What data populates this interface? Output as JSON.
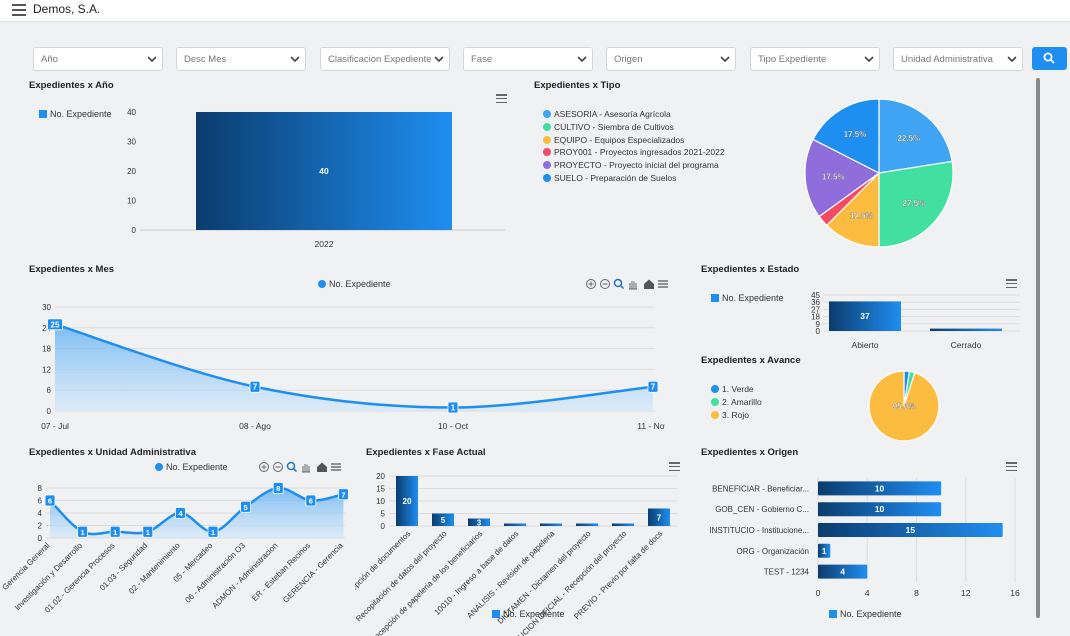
{
  "app": {
    "title": "Demos, S.A."
  },
  "filters": [
    {
      "placeholder": "Año"
    },
    {
      "placeholder": "Desc Mes"
    },
    {
      "placeholder": "Clasificacion Expediente"
    },
    {
      "placeholder": "Fase"
    },
    {
      "placeholder": "Origen"
    },
    {
      "placeholder": "Tipo Expediente"
    },
    {
      "placeholder": "Unidad Administrativa"
    }
  ],
  "colors": {
    "accent": "#1f8ef1",
    "dark": "#0b3c6e",
    "fill": "#b9dcf7"
  },
  "legend_label": "No. Expediente",
  "panels": {
    "anio": {
      "title": "Expedientes x Año"
    },
    "tipo": {
      "title": "Expedientes x Tipo"
    },
    "mes": {
      "title": "Expedientes x Mes"
    },
    "estado": {
      "title": "Expedientes x Estado"
    },
    "avance": {
      "title": "Expedientes x Avance"
    },
    "unidad": {
      "title": "Expedientes x Unidad Administrativa"
    },
    "fase": {
      "title": "Expedientes x Fase Actual"
    },
    "origen": {
      "title": "Expedientes x Origen"
    }
  },
  "chart_data": [
    {
      "id": "anio",
      "type": "bar",
      "title": "Expedientes x Año",
      "categories": [
        "2022"
      ],
      "series": [
        {
          "name": "No. Expediente",
          "values": [
            40
          ]
        }
      ],
      "yticks": [
        0,
        10,
        20,
        30,
        40
      ],
      "ylim": [
        0,
        40
      ],
      "legend": "top-left"
    },
    {
      "id": "tipo",
      "type": "pie",
      "title": "Expedientes x Tipo",
      "labels": [
        "ASESORIA - Asesoría Agrícola",
        "CULTIVO - Siembra de Cultivos",
        "EQUIPO - Equipos Especializados",
        "PROY001 - Proyectos ingresados 2021-2022",
        "PROYECTO - Proyecto inicial del programa",
        "SUELO - Preparación de Suelos"
      ],
      "values": [
        22.5,
        27.5,
        12.5,
        2.5,
        17.5,
        17.5
      ],
      "value_labels": [
        "22.5%",
        "27.5%",
        "12.5%",
        "",
        "17.5%",
        "17.5%"
      ],
      "colors": [
        "#3ea4f3",
        "#42e0a0",
        "#fcbc40",
        "#f24b62",
        "#8f6edb",
        "#1f8ef1"
      ],
      "legend": "left"
    },
    {
      "id": "mes",
      "type": "area",
      "title": "Expedientes x Mes",
      "categories": [
        "07 - Jul",
        "08 - Ago",
        "10 - Oct",
        "11 - Nov"
      ],
      "series": [
        {
          "name": "No. Expediente",
          "values": [
            25,
            7,
            1,
            7
          ]
        }
      ],
      "yticks": [
        0,
        6,
        12,
        18,
        24,
        30
      ],
      "ylim": [
        0,
        30
      ],
      "legend": "top-center"
    },
    {
      "id": "estado",
      "type": "bar",
      "title": "Expedientes x Estado",
      "categories": [
        "Abierto",
        "Cerrado"
      ],
      "series": [
        {
          "name": "No. Expediente",
          "values": [
            37,
            3
          ]
        }
      ],
      "value_labels": [
        "37",
        "3"
      ],
      "yticks": [
        0,
        9,
        18,
        27,
        36,
        45
      ],
      "ylim": [
        0,
        45
      ],
      "legend": "left"
    },
    {
      "id": "avance",
      "type": "pie",
      "title": "Expedientes x Avance",
      "labels": [
        "1. Verde",
        "2. Amarillo",
        "3. Rojo"
      ],
      "values": [
        2.5,
        2.5,
        95.0
      ],
      "value_labels": [
        "",
        "",
        "95.0%"
      ],
      "colors": [
        "#1f8ef1",
        "#42e0a0",
        "#fcbc40"
      ],
      "legend": "left"
    },
    {
      "id": "unidad",
      "type": "area",
      "title": "Expedientes x Unidad Administrativa",
      "categories": [
        "Gerencia General",
        "Investigación y Desarrollo",
        "01.02 - Gerencia Procesos",
        "01.03 - Seguridad",
        "02 - Mantenimiento",
        "05 - Mercadeo",
        "06 - Administración O3",
        "ADMON - Administracion",
        "ER - Esteban Recinos",
        "GERENCIA - Gerencia"
      ],
      "series": [
        {
          "name": "No. Expediente",
          "values": [
            6,
            1,
            1,
            1,
            4,
            1,
            5,
            8,
            6,
            7
          ]
        }
      ],
      "yticks": [
        0,
        2,
        4,
        6,
        8
      ],
      "ylim": [
        0,
        8
      ],
      "legend": "top-center"
    },
    {
      "id": "fase",
      "type": "bar",
      "title": "Expedientes x Fase Actual",
      "categories": [
        "Recepción de documentos",
        "Recopilación de datos del proyecto",
        "Recepción de papeleria de los beneficiarios",
        "10010 - Ingreso a base de datos",
        "ANALISIS - Revision de papeleria",
        "DICTAMEN - Dictamen del proyecto",
        "RESOLUCION OFICIAL - Recepción del proyecto",
        "PREVIO - Previo por falta de docs"
      ],
      "series": [
        {
          "name": "No. Expediente",
          "values": [
            20,
            5,
            3,
            1,
            1,
            1,
            1,
            7
          ]
        }
      ],
      "value_labels": [
        "20",
        "5",
        "3",
        "",
        "",
        "",
        "",
        "7"
      ],
      "yticks": [
        0,
        5,
        10,
        15,
        20
      ],
      "ylim": [
        0,
        20
      ],
      "legend": "bottom"
    },
    {
      "id": "origen",
      "type": "bar",
      "orientation": "horizontal",
      "title": "Expedientes x Origen",
      "categories": [
        "BENEFICIAR - Beneficiar...",
        "GOB_CEN - Gobierno C...",
        "INSTITUCIO - Institucione...",
        "ORG - Organización",
        "TEST - 1234"
      ],
      "series": [
        {
          "name": "No. Expediente",
          "values": [
            10,
            10,
            15,
            1,
            4
          ]
        }
      ],
      "xticks": [
        0,
        4,
        8,
        12,
        16
      ],
      "xlim": [
        0,
        16
      ],
      "legend": "bottom"
    }
  ]
}
